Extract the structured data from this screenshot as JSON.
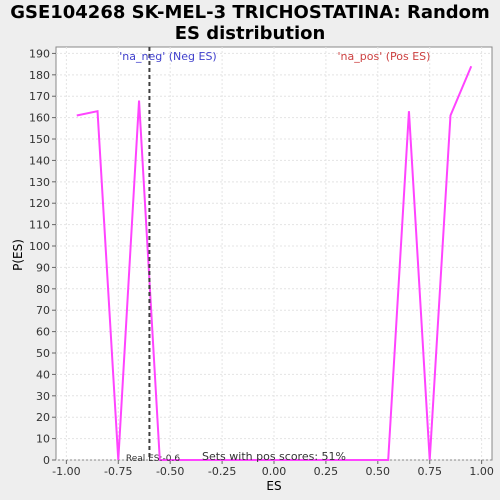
{
  "chart_data": {
    "type": "line",
    "title_lines": [
      "GSE104268 SK-MEL-3 TRICHOSTATINA: Random",
      "ES distribution"
    ],
    "xlabel": "ES",
    "ylabel": "P(ES)",
    "xlim": [
      -1.05,
      1.05
    ],
    "ylim": [
      0,
      193
    ],
    "x_ticks": [
      -1.0,
      -0.75,
      -0.5,
      -0.25,
      0.0,
      0.25,
      0.5,
      0.75,
      1.0
    ],
    "x_tick_labels": [
      "-1.00",
      "-0.75",
      "-0.50",
      "-0.25",
      "0.00",
      "0.25",
      "0.50",
      "0.75",
      "1.00"
    ],
    "y_ticks": [
      0,
      10,
      20,
      30,
      40,
      50,
      60,
      70,
      80,
      90,
      100,
      110,
      120,
      130,
      140,
      150,
      160,
      170,
      180,
      190
    ],
    "grid": true,
    "series": [
      {
        "color": "#ff44ff",
        "x": [
          -0.95,
          -0.85,
          -0.75,
          -0.65,
          -0.55,
          -0.45,
          0.45,
          0.55,
          0.65,
          0.75,
          0.85,
          0.95
        ],
        "y": [
          161,
          163,
          0,
          168,
          0,
          0,
          0,
          0,
          163,
          0,
          161,
          184
        ]
      }
    ],
    "vline": {
      "x": -0.6,
      "color": "#404040",
      "label": "Real ES:-0.6"
    },
    "annotations": {
      "neg_label": "'na_neg' (Neg ES)",
      "neg_color": "#4040cc",
      "pos_label": "'na_pos' (Pos ES)",
      "pos_color": "#cc4040",
      "footer": "Sets with pos scores: 51%"
    }
  }
}
